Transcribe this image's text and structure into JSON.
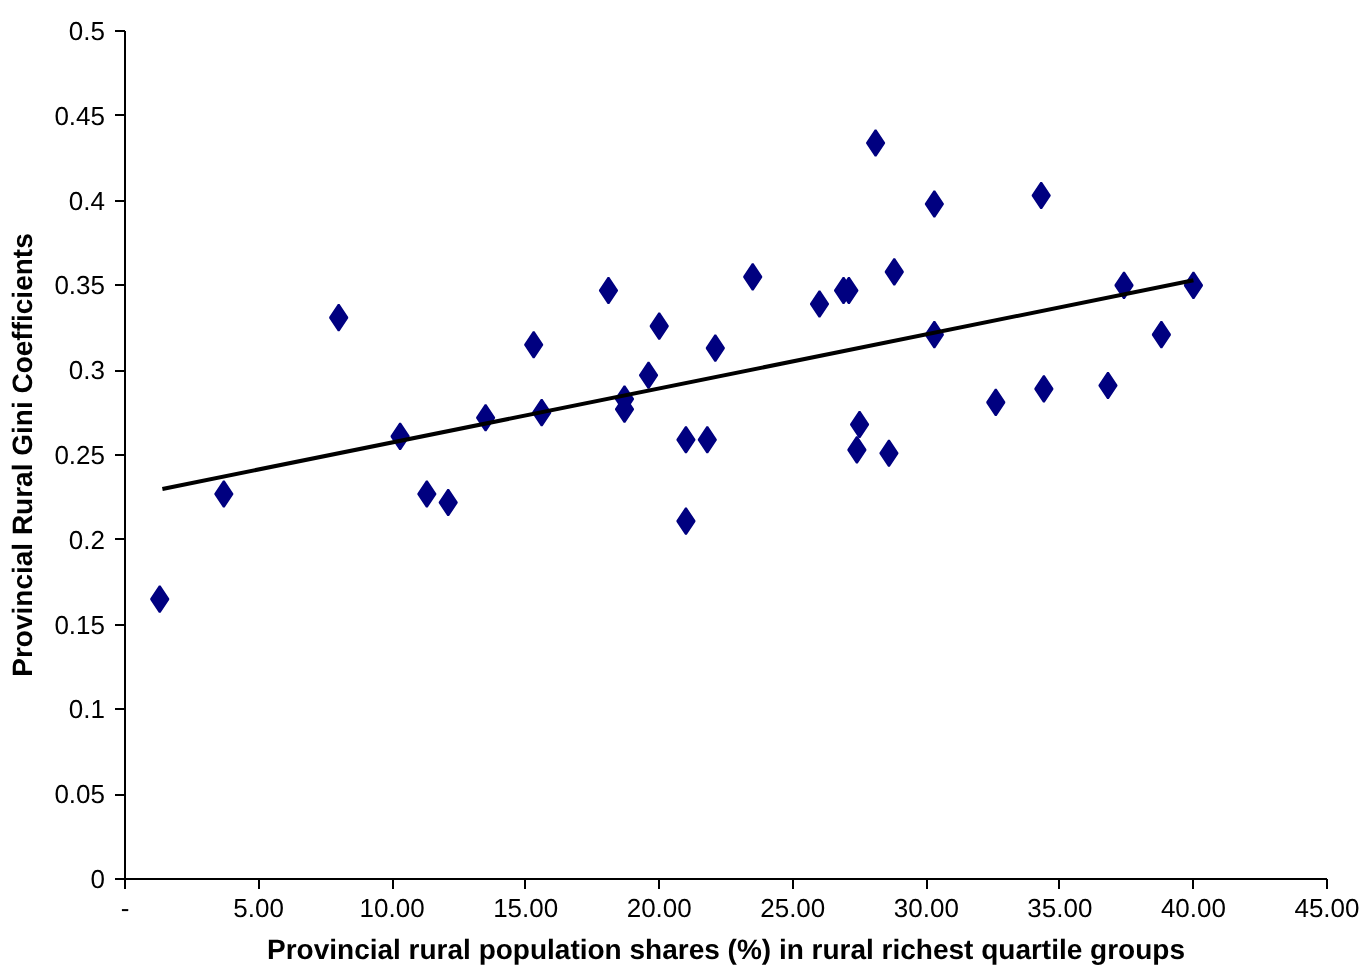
{
  "chart_data": {
    "type": "scatter",
    "xlabel": "Provincial rural population shares (%) in rural richest quartile groups",
    "ylabel": "Provincial Rural Gini Coefficients",
    "xlim": [
      0,
      45
    ],
    "ylim": [
      0,
      0.5
    ],
    "xticks": [
      {
        "value": 0,
        "label": "-"
      },
      {
        "value": 5,
        "label": "5.00"
      },
      {
        "value": 10,
        "label": "10.00"
      },
      {
        "value": 15,
        "label": "15.00"
      },
      {
        "value": 20,
        "label": "20.00"
      },
      {
        "value": 25,
        "label": "25.00"
      },
      {
        "value": 30,
        "label": "30.00"
      },
      {
        "value": 35,
        "label": "35.00"
      },
      {
        "value": 40,
        "label": "40.00"
      },
      {
        "value": 45,
        "label": "45.00"
      }
    ],
    "yticks": [
      0,
      0.05,
      0.1,
      0.15,
      0.2,
      0.25,
      0.3,
      0.35,
      0.4,
      0.45,
      0.5
    ],
    "grid": false,
    "series": [
      {
        "marker": "diamond",
        "color": "#000080",
        "x": [
          1.3,
          3.7,
          8.0,
          10.3,
          11.3,
          12.1,
          13.5,
          15.3,
          15.6,
          18.1,
          18.7,
          18.7,
          19.6,
          20.0,
          21.0,
          21.0,
          21.8,
          22.1,
          23.5,
          26.0,
          26.9,
          27.1,
          27.5,
          27.4,
          28.6,
          28.8,
          28.1,
          30.3,
          30.3,
          32.6,
          34.3,
          34.4,
          36.8,
          37.4,
          38.8,
          40.0
        ],
        "values": [
          0.165,
          0.227,
          0.331,
          0.261,
          0.227,
          0.222,
          0.272,
          0.315,
          0.275,
          0.347,
          0.283,
          0.277,
          0.297,
          0.326,
          0.259,
          0.211,
          0.259,
          0.313,
          0.355,
          0.339,
          0.347,
          0.347,
          0.268,
          0.253,
          0.251,
          0.358,
          0.434,
          0.398,
          0.321,
          0.281,
          0.403,
          0.289,
          0.291,
          0.35,
          0.321,
          0.35
        ]
      },
      {
        "type": "line",
        "marker": "none",
        "line_style": "solid",
        "color": "#000000",
        "x": [
          1.4,
          40.0
        ],
        "values": [
          0.23,
          0.353
        ]
      }
    ]
  }
}
